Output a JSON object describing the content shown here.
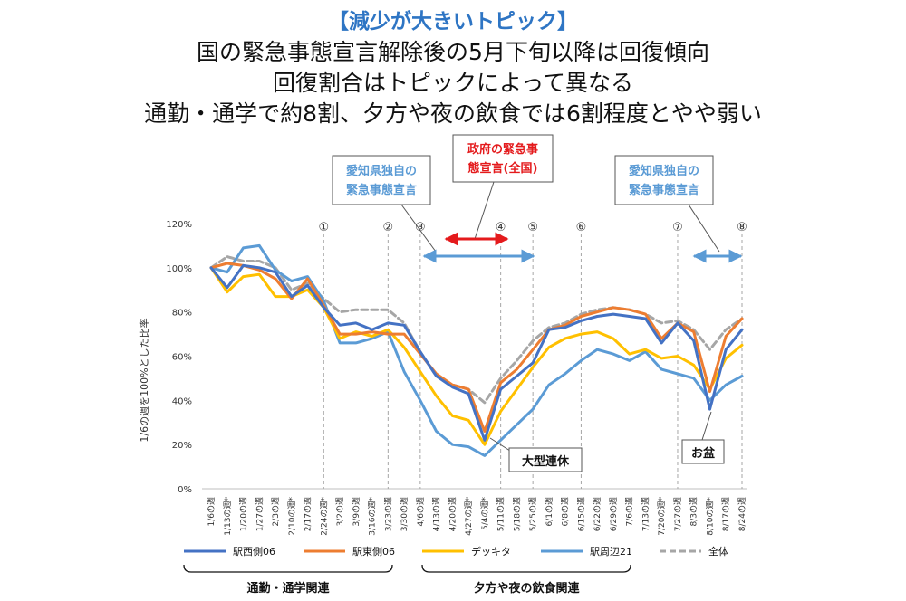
{
  "header": {
    "tag": "【減少が大きいトピック】",
    "line1": "国の緊急事態宣言解除後の5月下旬以降は回復傾向",
    "line2": "回復割合はトピックによって異なる",
    "line3": "通勤・通学で約8割、夕方や夜の飲食では6割程度とやや弱い"
  },
  "annotations": {
    "aichi_left": [
      "愛知県独自の",
      "緊急事態宣言"
    ],
    "national": [
      "政府の緊急事",
      "態宣言(全国)"
    ],
    "aichi_right": [
      "愛知県独自の",
      "緊急事態宣言"
    ],
    "golden_week": "大型連休",
    "obon": "お盆"
  },
  "markers": [
    {
      "label": "①",
      "index": 7
    },
    {
      "label": "②",
      "index": 11
    },
    {
      "label": "③",
      "index": 13
    },
    {
      "label": "④",
      "index": 18
    },
    {
      "label": "⑤",
      "index": 20
    },
    {
      "label": "⑥",
      "index": 23
    },
    {
      "label": "⑦",
      "index": 29
    },
    {
      "label": "⑧",
      "index": 33
    }
  ],
  "groups": {
    "commute": "通勤・通学関連",
    "dining": "夕方や夜の飲食関連"
  },
  "colors": {
    "national_arrow": "#e41a1c",
    "aichi_arrow": "#5b9bd5",
    "national_text": "#e41a1c",
    "aichi_text": "#5b9bd5"
  },
  "chart_data": {
    "type": "line",
    "ylabel": "1/6の週を100%とした比率",
    "ylim": [
      0,
      120
    ],
    "yticks": [
      "0%",
      "20%",
      "40%",
      "60%",
      "80%",
      "100%",
      "120%"
    ],
    "legend_position": "bottom",
    "categories": [
      "1/6の週",
      "1/13の週*",
      "1/20の週",
      "1/27の週",
      "2/3の週",
      "2/10の週*",
      "2/17の週",
      "2/24の週*",
      "3/2の週",
      "3/9の週",
      "3/16の週*",
      "3/23の週",
      "3/30の週",
      "4/6の週",
      "4/13の週",
      "4/20の週",
      "4/27の週*",
      "5/4の週*",
      "5/11の週",
      "5/18の週",
      "5/25の週",
      "6/1の週",
      "6/8の週",
      "6/15の週",
      "6/22の週",
      "6/29の週",
      "7/6の週",
      "7/13の週",
      "7/20の週*",
      "7/27の週",
      "8/3の週",
      "8/10の週*",
      "8/17の週",
      "8/24の週"
    ],
    "series": [
      {
        "name": "駅西側06",
        "color": "#4472c4",
        "dash": false,
        "values": [
          100,
          91,
          101,
          100,
          98,
          87,
          92,
          82,
          74,
          75,
          72,
          75,
          74,
          62,
          51,
          46,
          43,
          22,
          45,
          51,
          57,
          72,
          73,
          76,
          78,
          79,
          78,
          77,
          66,
          75,
          67,
          36,
          63,
          72
        ]
      },
      {
        "name": "駅東側06",
        "color": "#ed7d31",
        "dash": false,
        "values": [
          100,
          102,
          101,
          99,
          95,
          86,
          95,
          83,
          70,
          70,
          71,
          70,
          70,
          61,
          52,
          47,
          45,
          26,
          48,
          54,
          63,
          72,
          74,
          78,
          80,
          82,
          81,
          79,
          68,
          75,
          71,
          44,
          69,
          77
        ]
      },
      {
        "name": "デッキタ",
        "color": "#ffc000",
        "dash": false,
        "values": [
          100,
          89,
          96,
          97,
          87,
          87,
          90,
          82,
          68,
          71,
          69,
          72,
          64,
          53,
          42,
          33,
          31,
          20,
          35,
          45,
          55,
          64,
          68,
          70,
          71,
          68,
          61,
          63,
          59,
          60,
          56,
          45,
          59,
          65
        ]
      },
      {
        "name": "駅周辺21",
        "color": "#5b9bd5",
        "dash": false,
        "values": [
          100,
          98,
          109,
          110,
          99,
          94,
          96,
          85,
          66,
          66,
          68,
          71,
          53,
          40,
          26,
          20,
          19,
          15,
          22,
          29,
          36,
          47,
          52,
          58,
          63,
          61,
          58,
          62,
          54,
          52,
          50,
          40,
          47,
          51
        ]
      },
      {
        "name": "全体",
        "color": "#a6a6a6",
        "dash": true,
        "values": [
          100,
          105,
          103,
          103,
          100,
          90,
          93,
          86,
          80,
          81,
          81,
          81,
          75,
          62,
          51,
          47,
          45,
          39,
          50,
          58,
          67,
          73,
          75,
          79,
          81,
          82,
          81,
          79,
          75,
          76,
          72,
          63,
          72,
          77
        ]
      }
    ]
  }
}
